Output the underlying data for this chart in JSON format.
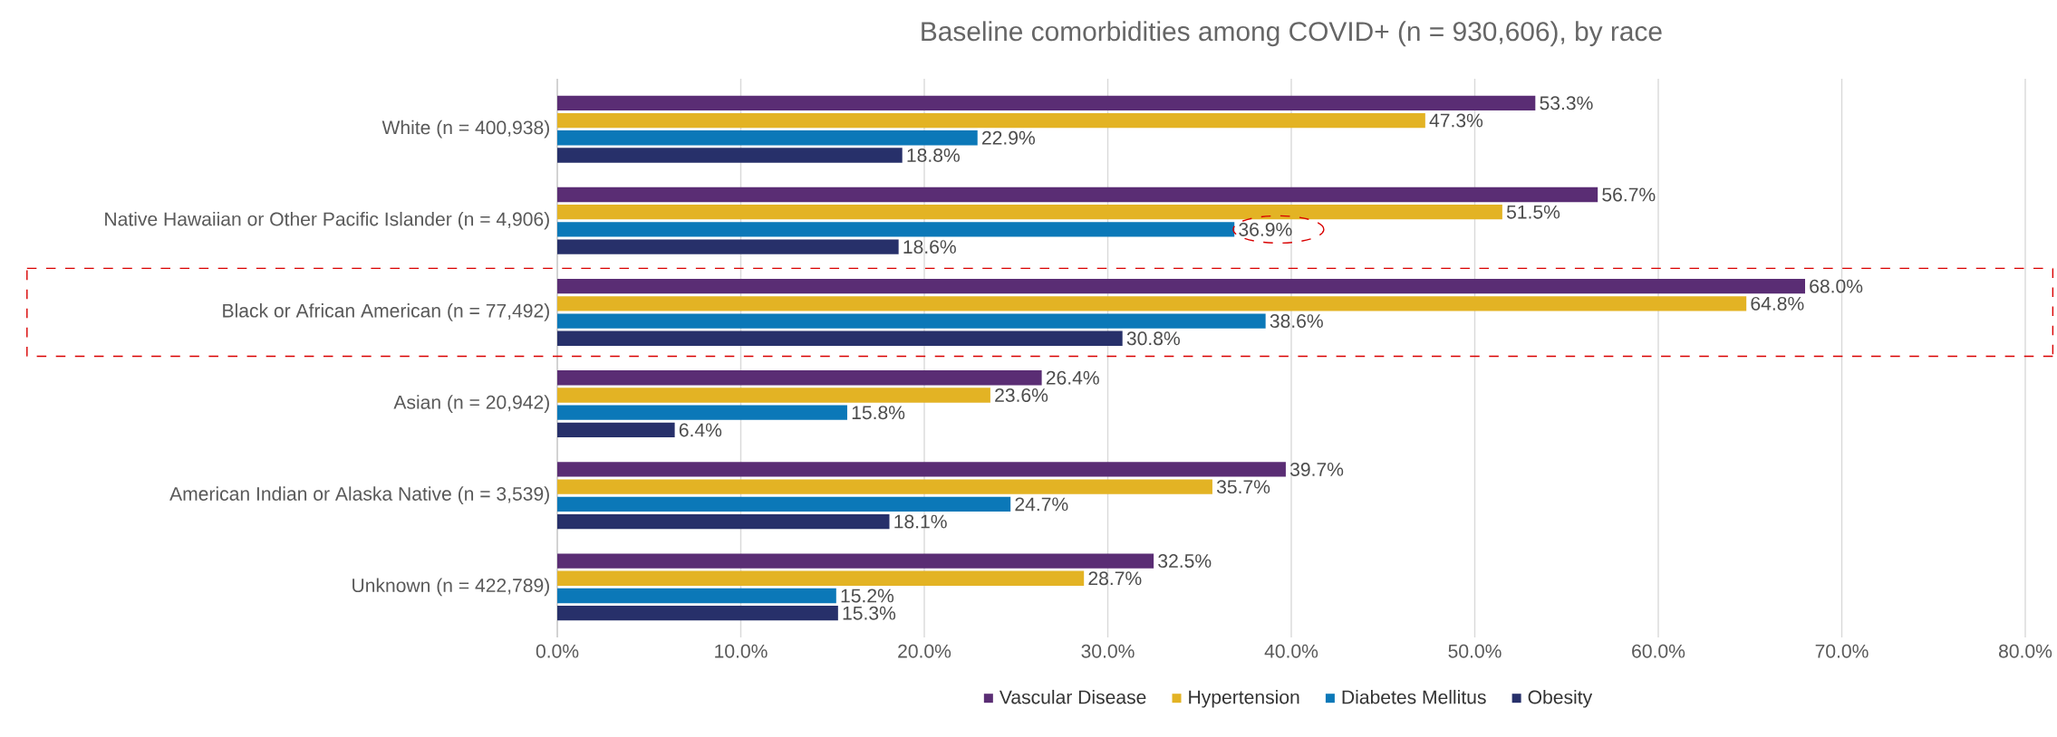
{
  "chart_data": {
    "type": "bar",
    "orientation": "horizontal",
    "title": "Baseline comorbidities among COVID+ (n = 930,606), by race",
    "categories": [
      "White (n = 400,938)",
      "Native Hawaiian or Other Pacific Islander (n = 4,906)",
      "Black or African American (n = 77,492)",
      "Asian (n = 20,942)",
      "American Indian or Alaska Native (n = 3,539)",
      "Unknown (n = 422,789)"
    ],
    "series": [
      {
        "name": "Vascular Disease",
        "color": "#5a2d74",
        "values": [
          53.3,
          56.7,
          68.0,
          26.4,
          39.7,
          32.5
        ],
        "value_labels": [
          "53.3%",
          "56.7%",
          "68.0%",
          "26.4%",
          "39.7%",
          "32.5%"
        ]
      },
      {
        "name": "Hypertension",
        "color": "#e3b324",
        "values": [
          47.3,
          51.5,
          64.8,
          23.6,
          35.7,
          28.7
        ],
        "value_labels": [
          "47.3%",
          "51.5%",
          "64.8%",
          "23.6%",
          "35.7%",
          "28.7%"
        ]
      },
      {
        "name": "Diabetes Mellitus",
        "color": "#0b78b8",
        "values": [
          22.9,
          36.9,
          38.6,
          15.8,
          24.7,
          15.2
        ],
        "value_labels": [
          "22.9%",
          "36.9%",
          "38.6%",
          "15.8%",
          "24.7%",
          "15.2%"
        ]
      },
      {
        "name": "Obesity",
        "color": "#27306a",
        "values": [
          18.8,
          18.6,
          30.8,
          6.4,
          18.1,
          15.3
        ],
        "value_labels": [
          "18.8%",
          "18.6%",
          "30.8%",
          "6.4%",
          "18.1%",
          "15.3%"
        ]
      }
    ],
    "xlim": [
      0,
      80
    ],
    "xticks": [
      {
        "value": 0,
        "label": "0.0%"
      },
      {
        "value": 10,
        "label": "10.0%"
      },
      {
        "value": 20,
        "label": "20.0%"
      },
      {
        "value": 30,
        "label": "30.0%"
      },
      {
        "value": 40,
        "label": "40.0%"
      },
      {
        "value": 50,
        "label": "50.0%"
      },
      {
        "value": 60,
        "label": "60.0%"
      },
      {
        "value": 70,
        "label": "70.0%"
      },
      {
        "value": 80,
        "label": "80.0%"
      }
    ],
    "grid": "x",
    "legend": "bottom"
  }
}
